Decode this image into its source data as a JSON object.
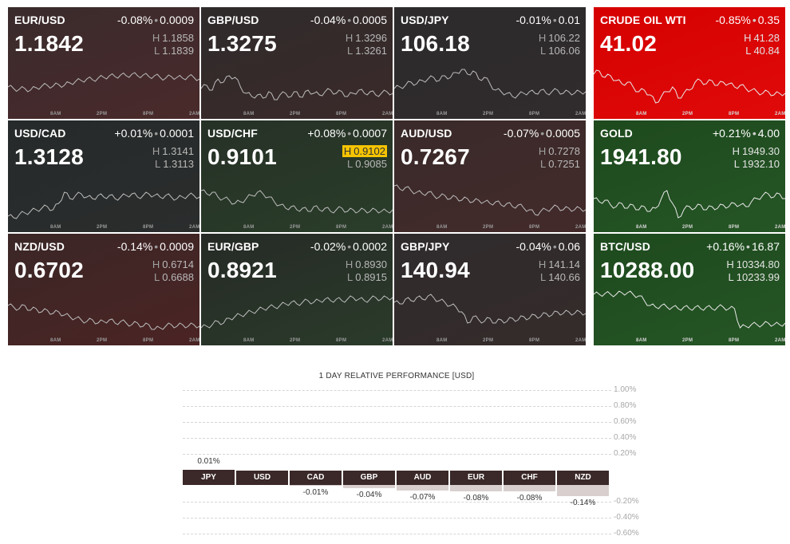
{
  "tiles": [
    {
      "symbol": "EUR/USD",
      "change_pct": "-0.08%",
      "change_abs": "0.0009",
      "price": "1.1842",
      "high_label": "H",
      "high": "1.1858",
      "low_label": "L",
      "low": "1.1839",
      "color": "#3a2b2c",
      "color_end": "#4a2a2b",
      "flag_high": false,
      "commodity": false,
      "col": 0,
      "row": 0,
      "series": [
        32,
        34,
        35,
        34,
        36,
        33,
        31,
        30,
        31,
        29,
        30,
        27,
        25,
        24,
        22,
        23,
        21,
        20,
        18,
        19,
        17,
        18,
        16,
        18,
        17,
        19,
        18,
        20,
        21,
        19,
        20,
        21,
        19,
        20,
        22
      ]
    },
    {
      "symbol": "GBP/USD",
      "change_pct": "-0.04%",
      "change_abs": "0.0005",
      "price": "1.3275",
      "high_label": "H",
      "high": "1.3296",
      "low_label": "L",
      "low": "1.3261",
      "color": "#2f2b2b",
      "color_end": "#3b2a2a",
      "flag_high": false,
      "commodity": false,
      "col": 1,
      "row": 0,
      "series": [
        34,
        30,
        36,
        22,
        26,
        18,
        20,
        32,
        40,
        44,
        42,
        46,
        38,
        48,
        42,
        40,
        44,
        38,
        45,
        36,
        40,
        42,
        38,
        36,
        40,
        38,
        44,
        40,
        36,
        40,
        38,
        42,
        40,
        38,
        40
      ]
    },
    {
      "symbol": "USD/JPY",
      "change_pct": "-0.01%",
      "change_abs": "0.01",
      "price": "106.18",
      "high_label": "H",
      "high": "106.22",
      "low_label": "L",
      "low": "106.06",
      "color": "#2d2b2c",
      "color_end": "#302b2c",
      "flag_high": false,
      "commodity": false,
      "col": 2,
      "row": 0,
      "series": [
        34,
        32,
        30,
        26,
        28,
        24,
        22,
        20,
        24,
        18,
        20,
        14,
        10,
        16,
        12,
        22,
        20,
        28,
        36,
        38,
        40,
        44,
        42,
        40,
        38,
        40,
        36,
        40,
        38,
        36,
        40,
        38,
        40,
        38,
        38
      ]
    },
    {
      "symbol": "CRUDE OIL WTI",
      "change_pct": "-0.85%",
      "change_abs": "0.35",
      "price": "41.02",
      "high_label": "H",
      "high": "41.28",
      "low_label": "L",
      "low": "40.84",
      "color": "#d50000",
      "color_end": "#e00a0a",
      "flag_high": false,
      "commodity": true,
      "col": 3,
      "row": 0,
      "series": [
        16,
        12,
        20,
        18,
        24,
        28,
        26,
        32,
        38,
        36,
        42,
        52,
        44,
        38,
        32,
        46,
        40,
        36,
        26,
        24,
        28,
        24,
        30,
        26,
        28,
        32,
        30,
        34,
        36,
        38,
        40,
        38,
        42,
        40,
        40
      ]
    },
    {
      "symbol": "USD/CAD",
      "change_pct": "+0.01%",
      "change_abs": "0.0001",
      "price": "1.3128",
      "high_label": "H",
      "high": "1.3141",
      "low_label": "L",
      "low": "1.3113",
      "color": "#262a2a",
      "color_end": "#2b2d2d",
      "flag_high": false,
      "commodity": false,
      "col": 0,
      "row": 1,
      "series": [
        52,
        54,
        50,
        48,
        46,
        44,
        42,
        40,
        44,
        36,
        22,
        30,
        26,
        24,
        28,
        30,
        26,
        28,
        26,
        30,
        28,
        26,
        24,
        28,
        26,
        24,
        26,
        28,
        26,
        28,
        30,
        28,
        26,
        26,
        28
      ]
    },
    {
      "symbol": "USD/CHF",
      "change_pct": "+0.08%",
      "change_abs": "0.0007",
      "price": "0.9101",
      "high_label": "H",
      "high": "0.9102",
      "low_label": "L",
      "low": "0.9085",
      "color": "#263126",
      "color_end": "#2a3d2a",
      "flag_high": true,
      "commodity": false,
      "col": 1,
      "row": 1,
      "series": [
        20,
        24,
        22,
        28,
        30,
        32,
        36,
        34,
        30,
        26,
        22,
        24,
        28,
        34,
        38,
        42,
        40,
        44,
        42,
        46,
        40,
        44,
        42,
        46,
        44,
        42,
        46,
        44,
        46,
        44,
        46,
        44,
        46,
        46,
        44
      ]
    },
    {
      "symbol": "AUD/USD",
      "change_pct": "-0.07%",
      "change_abs": "0.0005",
      "price": "0.7267",
      "high_label": "H",
      "high": "0.7278",
      "low_label": "L",
      "low": "0.7251",
      "color": "#3a2a2a",
      "color_end": "#432a2a",
      "flag_high": false,
      "commodity": false,
      "col": 2,
      "row": 1,
      "series": [
        14,
        18,
        16,
        20,
        22,
        24,
        22,
        26,
        28,
        26,
        30,
        28,
        32,
        30,
        34,
        32,
        34,
        36,
        34,
        38,
        36,
        40,
        38,
        42,
        44,
        50,
        46,
        44,
        42,
        40,
        44,
        42,
        44,
        42,
        44
      ]
    },
    {
      "symbol": "GOLD",
      "change_pct": "+0.21%",
      "change_abs": "4.00",
      "price": "1941.80",
      "high_label": "H",
      "high": "1949.30",
      "low_label": "L",
      "low": "1932.10",
      "color": "#1e4a1e",
      "color_end": "#255525",
      "flag_high": false,
      "commodity": true,
      "col": 3,
      "row": 1,
      "series": [
        30,
        34,
        32,
        38,
        40,
        36,
        42,
        38,
        44,
        40,
        46,
        42,
        30,
        20,
        36,
        54,
        44,
        40,
        42,
        38,
        44,
        40,
        42,
        38,
        40,
        36,
        38,
        40,
        34,
        30,
        26,
        24,
        28,
        24,
        30
      ]
    },
    {
      "symbol": "NZD/USD",
      "change_pct": "-0.14%",
      "change_abs": "0.0009",
      "price": "0.6702",
      "high_label": "H",
      "high": "0.6714",
      "low_label": "L",
      "low": "0.6688",
      "color": "#3b2626",
      "color_end": "#4b2424",
      "flag_high": false,
      "commodity": false,
      "col": 0,
      "row": 2,
      "series": [
        22,
        24,
        26,
        22,
        28,
        26,
        30,
        28,
        32,
        30,
        34,
        36,
        38,
        40,
        42,
        40,
        44,
        42,
        40,
        44,
        42,
        44,
        46,
        44,
        48,
        46,
        52,
        50,
        48,
        46,
        48,
        46,
        48,
        46,
        48
      ]
    },
    {
      "symbol": "EUR/GBP",
      "change_pct": "-0.02%",
      "change_abs": "0.0002",
      "price": "0.8921",
      "high_label": "H",
      "high": "0.8930",
      "low_label": "L",
      "low": "0.8915",
      "color": "#262a26",
      "color_end": "#2a3b2a",
      "flag_high": false,
      "commodity": false,
      "col": 1,
      "row": 2,
      "series": [
        50,
        48,
        46,
        42,
        44,
        38,
        36,
        34,
        32,
        30,
        28,
        26,
        24,
        24,
        22,
        20,
        18,
        20,
        18,
        16,
        18,
        16,
        14,
        16,
        14,
        16,
        14,
        12,
        14,
        16,
        14,
        12,
        14,
        12,
        12
      ]
    },
    {
      "symbol": "GBP/JPY",
      "change_pct": "-0.04%",
      "change_abs": "0.06",
      "price": "140.94",
      "high_label": "H",
      "high": "141.14",
      "low_label": "L",
      "low": "140.66",
      "color": "#2f2b2c",
      "color_end": "#352b2b",
      "flag_high": false,
      "commodity": false,
      "col": 2,
      "row": 2,
      "series": [
        18,
        20,
        14,
        16,
        12,
        14,
        10,
        12,
        16,
        18,
        22,
        24,
        30,
        44,
        36,
        40,
        42,
        38,
        44,
        40,
        42,
        38,
        40,
        36,
        38,
        34,
        36,
        32,
        34,
        30,
        32,
        30,
        32,
        30,
        32
      ]
    },
    {
      "symbol": "BTC/USD",
      "change_pct": "+0.16%",
      "change_abs": "16.87",
      "price": "10288.00",
      "high_label": "H",
      "high": "10334.80",
      "low_label": "L",
      "low": "10233.99",
      "color": "#1e4a1e",
      "color_end": "#255525",
      "flag_high": false,
      "commodity": true,
      "col": 3,
      "row": 2,
      "series": [
        8,
        8,
        7,
        8,
        8,
        6,
        6,
        8,
        10,
        16,
        22,
        24,
        22,
        24,
        24,
        26,
        24,
        26,
        24,
        26,
        24,
        26,
        24,
        24,
        26,
        26,
        50,
        48,
        46,
        46,
        46,
        44,
        46,
        46,
        44
      ]
    }
  ],
  "tick_labels": [
    "8AM",
    "2PM",
    "8PM",
    "2AM"
  ],
  "performance": {
    "title": "1 DAY RELATIVE PERFORMANCE  [USD]",
    "axis_labels": [
      "1.00%",
      "0.80%",
      "0.60%",
      "0.40%",
      "0.20%",
      "-0.20%",
      "-0.40%",
      "-0.60%"
    ],
    "axis_values": [
      1.0,
      0.8,
      0.6,
      0.4,
      0.2,
      -0.2,
      -0.4,
      -0.6
    ],
    "bar_color": "#3b2828",
    "fill_color": "#d9cfcf",
    "currencies": [
      {
        "code": "JPY",
        "value": 0.01,
        "label": "0.01%"
      },
      {
        "code": "USD",
        "value": 0.0,
        "label": ""
      },
      {
        "code": "CAD",
        "value": -0.01,
        "label": "-0.01%"
      },
      {
        "code": "GBP",
        "value": -0.04,
        "label": "-0.04%"
      },
      {
        "code": "AUD",
        "value": -0.07,
        "label": "-0.07%"
      },
      {
        "code": "EUR",
        "value": -0.08,
        "label": "-0.08%"
      },
      {
        "code": "CHF",
        "value": -0.08,
        "label": "-0.08%"
      },
      {
        "code": "NZD",
        "value": -0.14,
        "label": "-0.14%"
      }
    ]
  }
}
